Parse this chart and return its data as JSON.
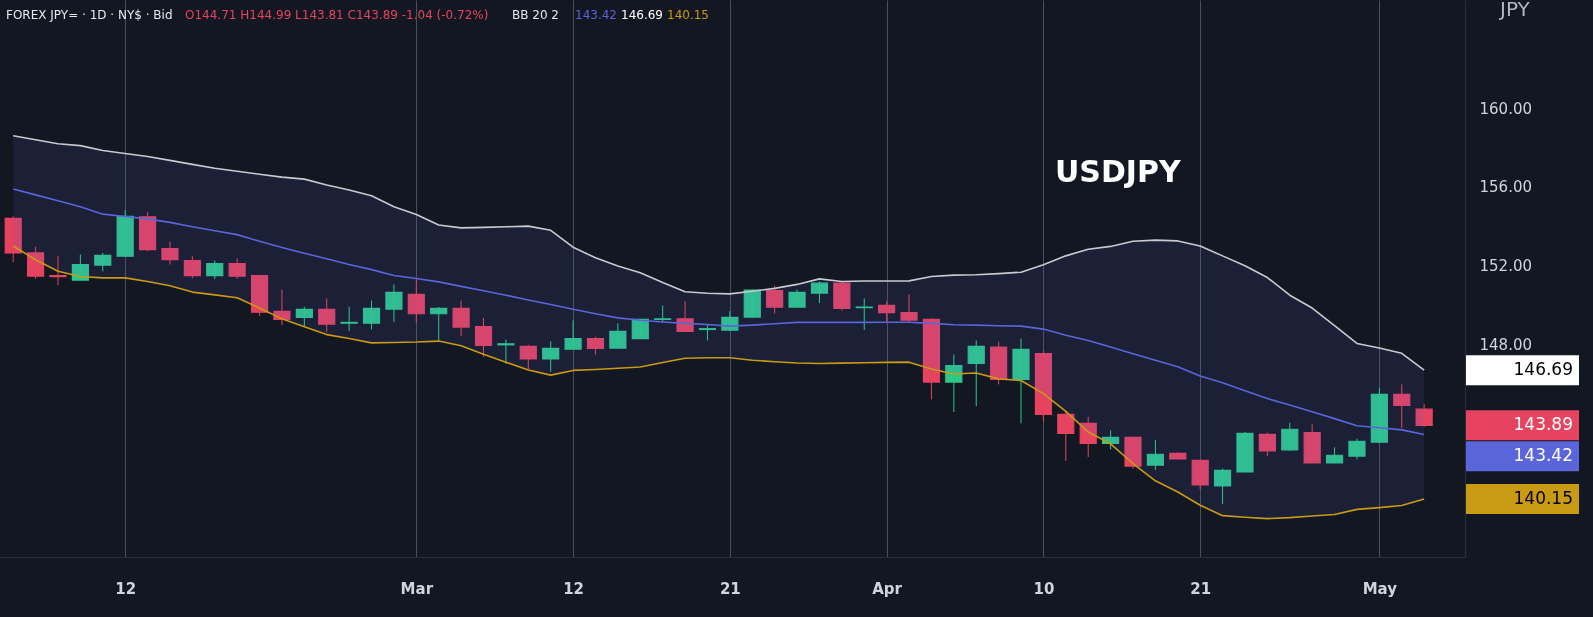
{
  "chart_data": {
    "type": "candlestick",
    "title": "FOREX JPY= · 1D · NY$ · Bid",
    "subtitle": "USDJPY",
    "categories": [
      null,
      null,
      null,
      null,
      null,
      "12",
      null,
      null,
      null,
      null,
      null,
      null,
      null,
      null,
      null,
      null,
      null,
      null,
      "Mar",
      null,
      null,
      null,
      null,
      null,
      null,
      "12",
      null,
      null,
      null,
      null,
      null,
      null,
      "21",
      null,
      null,
      null,
      null,
      null,
      null,
      "Apr",
      null,
      null,
      null,
      null,
      null,
      null,
      "10",
      null,
      null,
      null,
      null,
      null,
      null,
      "21",
      null,
      null,
      null,
      null,
      null,
      null,
      null,
      "May",
      null,
      null
    ],
    "ohlc": [
      [
        154.4,
        154.51,
        152.18,
        152.65
      ],
      [
        152.65,
        152.96,
        151.33,
        151.47
      ],
      [
        151.5,
        152.48,
        151.01,
        151.45
      ],
      [
        151.27,
        152.57,
        151.25,
        152.06
      ],
      [
        152.03,
        152.65,
        151.71,
        152.52
      ],
      [
        152.48,
        154.82,
        152.46,
        154.51
      ],
      [
        154.48,
        154.73,
        152.74,
        152.82
      ],
      [
        152.87,
        153.23,
        152.06,
        152.31
      ],
      [
        152.26,
        152.48,
        151.37,
        151.5
      ],
      [
        151.5,
        152.26,
        151.32,
        152.11
      ],
      [
        152.11,
        152.37,
        151.33,
        151.47
      ],
      [
        151.5,
        151.5,
        149.44,
        149.64
      ],
      [
        149.68,
        150.79,
        148.98,
        149.27
      ],
      [
        149.37,
        149.91,
        148.93,
        149.78
      ],
      [
        149.78,
        150.34,
        148.63,
        149.03
      ],
      [
        149.08,
        149.91,
        148.68,
        149.12
      ],
      [
        149.08,
        150.23,
        148.76,
        149.83
      ],
      [
        149.79,
        151.05,
        149.15,
        150.64
      ],
      [
        150.54,
        151.3,
        149.1,
        149.56
      ],
      [
        149.56,
        149.9,
        148.17,
        149.83
      ],
      [
        149.83,
        150.23,
        148.42,
        148.88
      ],
      [
        148.91,
        149.35,
        147.37,
        147.95
      ],
      [
        147.98,
        148.25,
        147.02,
        148.03
      ],
      [
        147.9,
        147.98,
        146.73,
        147.26
      ],
      [
        147.26,
        148.15,
        146.61,
        147.8
      ],
      [
        147.76,
        149.22,
        147.74,
        148.3
      ],
      [
        148.3,
        148.39,
        147.48,
        147.8
      ],
      [
        147.81,
        149.07,
        147.8,
        148.66
      ],
      [
        148.3,
        149.3,
        148.29,
        149.27
      ],
      [
        149.27,
        149.98,
        149.13,
        149.3
      ],
      [
        149.3,
        150.2,
        148.64,
        148.66
      ],
      [
        148.76,
        149.0,
        148.2,
        148.8
      ],
      [
        148.73,
        149.69,
        148.71,
        149.37
      ],
      [
        149.39,
        150.79,
        149.37,
        150.76
      ],
      [
        150.74,
        150.99,
        149.57,
        149.9
      ],
      [
        149.9,
        150.79,
        149.88,
        150.64
      ],
      [
        150.61,
        151.21,
        150.1,
        151.11
      ],
      [
        151.11,
        151.21,
        149.73,
        149.83
      ],
      [
        149.87,
        150.34,
        148.73,
        149.9
      ],
      [
        149.98,
        150.18,
        149.1,
        149.62
      ],
      [
        149.62,
        150.54,
        149.13,
        149.24
      ],
      [
        149.27,
        149.32,
        145.21,
        146.09
      ],
      [
        146.09,
        147.49,
        144.57,
        146.93
      ],
      [
        147.04,
        148.2,
        144.87,
        147.9
      ],
      [
        147.86,
        148.14,
        145.97,
        146.22
      ],
      [
        146.22,
        148.3,
        143.99,
        147.75
      ],
      [
        147.54,
        147.66,
        144.06,
        144.45
      ],
      [
        144.45,
        144.62,
        142.08,
        143.48
      ],
      [
        143.99,
        144.33,
        142.28,
        142.97
      ],
      [
        142.97,
        143.63,
        142.67,
        143.28
      ],
      [
        143.28,
        143.31,
        141.69,
        141.82
      ],
      [
        141.87,
        143.14,
        141.62,
        142.42
      ],
      [
        142.47,
        142.53,
        142.16,
        142.18
      ],
      [
        142.11,
        142.16,
        140.64,
        140.86
      ],
      [
        140.81,
        141.69,
        139.89,
        141.6
      ],
      [
        141.52,
        143.55,
        141.5,
        143.48
      ],
      [
        143.43,
        143.52,
        142.33,
        142.59
      ],
      [
        142.64,
        144.02,
        142.59,
        143.69
      ],
      [
        143.52,
        143.94,
        141.96,
        141.98
      ],
      [
        141.98,
        142.77,
        141.96,
        142.37
      ],
      [
        142.33,
        143.21,
        142.16,
        143.08
      ],
      [
        143.04,
        145.8,
        142.97,
        145.46
      ],
      [
        145.46,
        145.97,
        143.74,
        144.9
      ],
      [
        144.71,
        144.99,
        143.81,
        143.89
      ]
    ],
    "series": [
      {
        "type": "line",
        "color": "#c9c9cf",
        "values": [
          158.6,
          158.4,
          158.2,
          158.1,
          157.85,
          157.7,
          157.55,
          157.35,
          157.15,
          156.95,
          156.8,
          156.65,
          156.5,
          156.4,
          156.1,
          155.85,
          155.55,
          155.0,
          154.6,
          154.07,
          153.92,
          153.95,
          153.98,
          154.01,
          153.8,
          152.94,
          152.4,
          151.98,
          151.64,
          151.15,
          150.68,
          150.6,
          150.57,
          150.7,
          150.85,
          151.05,
          151.33,
          151.2,
          151.22,
          151.22,
          151.23,
          151.45,
          151.52,
          151.54,
          151.6,
          151.67,
          152.05,
          152.5,
          152.84,
          152.98,
          153.24,
          153.3,
          153.26,
          153.0,
          152.5,
          152.0,
          151.4,
          150.5,
          149.85,
          148.96,
          148.05,
          147.82,
          147.55,
          146.69
        ]
      },
      {
        "type": "line",
        "color": "#5965d8",
        "lower": [
          153.0,
          152.3,
          151.72,
          151.45,
          151.38,
          151.38,
          151.2,
          150.98,
          150.66,
          150.52,
          150.37,
          149.85,
          149.3,
          148.9,
          148.5,
          148.3,
          148.08,
          148.1,
          148.12,
          148.17,
          147.93,
          147.5,
          147.1,
          146.7,
          146.44,
          146.68,
          146.73,
          146.79,
          146.85,
          147.08,
          147.3,
          147.32,
          147.32,
          147.2,
          147.12,
          147.06,
          147.03,
          147.05,
          147.07,
          147.09,
          147.1,
          146.75,
          146.5,
          146.55,
          146.25,
          146.17,
          145.5,
          144.6,
          143.55,
          142.95,
          141.95,
          141.07,
          140.5,
          139.83,
          139.3,
          139.22,
          139.15,
          139.2,
          139.28,
          139.36,
          139.62,
          139.71,
          139.82,
          140.15
        ],
        "upper": [
          158.6,
          158.4,
          158.2,
          158.1,
          157.85,
          157.7,
          157.55,
          157.35,
          157.15,
          156.95,
          156.8,
          156.65,
          156.5,
          156.4,
          156.1,
          155.85,
          155.55,
          155.0,
          154.6,
          154.07,
          153.92,
          153.95,
          153.98,
          154.01,
          153.8,
          152.94,
          152.4,
          151.98,
          151.64,
          151.15,
          150.68,
          150.6,
          150.57,
          150.7,
          150.85,
          151.05,
          151.33,
          151.2,
          151.22,
          151.22,
          151.23,
          151.45,
          151.52,
          151.54,
          151.6,
          151.67,
          152.05,
          152.5,
          152.84,
          152.98,
          153.24,
          153.3,
          153.26,
          153.0,
          152.5,
          152.0,
          151.4,
          150.5,
          149.85,
          148.96,
          148.05,
          147.82,
          147.55,
          146.69
        ],
        "values": [
          155.9,
          155.6,
          155.3,
          155.0,
          154.62,
          154.5,
          154.38,
          154.2,
          153.98,
          153.78,
          153.58,
          153.24,
          152.92,
          152.63,
          152.35,
          152.06,
          151.8,
          151.5,
          151.35,
          151.18,
          150.95,
          150.73,
          150.5,
          150.26,
          150.03,
          149.79,
          149.56,
          149.35,
          149.23,
          149.14,
          149.07,
          149.01,
          148.93,
          148.98,
          149.05,
          149.12,
          149.12,
          149.12,
          149.12,
          149.13,
          149.13,
          149.07,
          149.0,
          148.98,
          148.95,
          148.93,
          148.78,
          148.47,
          148.2,
          147.87,
          147.53,
          147.2,
          146.87,
          146.4,
          146.05,
          145.65,
          145.25,
          144.92,
          144.58,
          144.23,
          143.87,
          143.77,
          143.66,
          143.42
        ]
      },
      {
        "type": "line",
        "color": "#c99a14",
        "values": [
          153.0,
          152.3,
          151.72,
          151.45,
          151.38,
          151.38,
          151.2,
          150.98,
          150.66,
          150.52,
          150.37,
          149.85,
          149.3,
          148.9,
          148.5,
          148.3,
          148.08,
          148.1,
          148.12,
          148.17,
          147.93,
          147.5,
          147.1,
          146.7,
          146.44,
          146.68,
          146.73,
          146.79,
          146.85,
          147.08,
          147.3,
          147.32,
          147.32,
          147.2,
          147.12,
          147.06,
          147.03,
          147.05,
          147.07,
          147.09,
          147.1,
          146.75,
          146.5,
          146.55,
          146.25,
          146.17,
          145.5,
          144.6,
          143.55,
          142.95,
          141.95,
          141.07,
          140.5,
          139.83,
          139.3,
          139.22,
          139.15,
          139.2,
          139.28,
          139.36,
          139.62,
          139.71,
          139.82,
          140.15
        ]
      }
    ],
    "ylim": [
      137.2,
      165.5
    ],
    "yticks": [
      {
        "value": 148,
        "label": "148.00"
      },
      {
        "value": 152,
        "label": "152.00"
      },
      {
        "value": 156,
        "label": "156.00"
      },
      {
        "value": 160,
        "label": "160.00"
      }
    ],
    "grid": "x",
    "annotations": [
      "O144.71 H144.99 L143.81 C143.89 -1.04 (-0.72%)",
      "BB 20 2",
      "143.42",
      "146.69",
      "140.15",
      "JPY",
      "146.69",
      "143.89",
      "143.42",
      "140.15"
    ]
  }
}
